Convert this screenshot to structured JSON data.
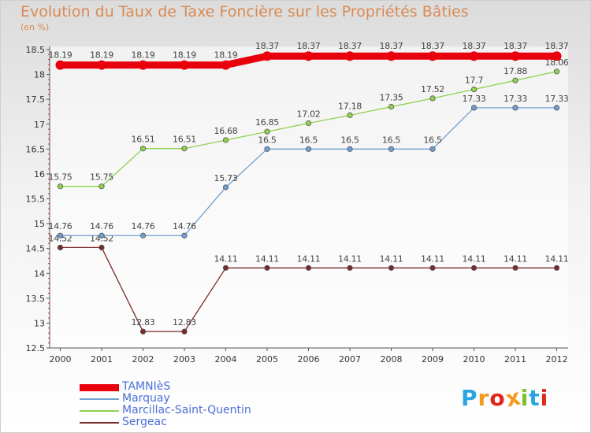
{
  "title": "Evolution du Taux de Taxe Foncière sur les Propriétés Bâties",
  "unit": "(en %)",
  "logo": {
    "text": "Proxiti",
    "letter_colors": [
      "#2aa6df",
      "#f39a1f",
      "#e0261b",
      "#f39a1f",
      "#7bbf2a",
      "#2aa6df",
      "#e0261b"
    ]
  },
  "chart_data": {
    "type": "line",
    "title": "Evolution du Taux de Taxe Foncière sur les Propriétés Bâties",
    "ylabel": "(en %)",
    "xlabel": "",
    "x": [
      "2000",
      "2001",
      "2002",
      "2003",
      "2004",
      "2005",
      "2006",
      "2007",
      "2008",
      "2009",
      "2010",
      "2011",
      "2012"
    ],
    "ylim": [
      12.5,
      18.5
    ],
    "yticks": [
      "12.5",
      "13",
      "13.5",
      "14",
      "14.5",
      "15",
      "15.5",
      "16",
      "16.5",
      "17",
      "17.5",
      "18",
      "18.5"
    ],
    "grid": false,
    "legend_position": "bottom-left",
    "series": [
      {
        "name": "TAMNIèS",
        "color": "#e8000c",
        "values": [
          18.19,
          18.19,
          18.19,
          18.19,
          18.19,
          18.37,
          18.37,
          18.37,
          18.37,
          18.37,
          18.37,
          18.37,
          18.37
        ],
        "labels": [
          "18.19",
          "18.19",
          "18.19",
          "18.19",
          "18.19",
          "18.37",
          "18.37",
          "18.37",
          "18.37",
          "18.37",
          "18.37",
          "18.37",
          "18.37"
        ]
      },
      {
        "name": "Marquay",
        "color": "#6f9fd0",
        "values": [
          14.76,
          14.76,
          14.76,
          14.76,
          15.73,
          16.5,
          16.5,
          16.5,
          16.5,
          16.5,
          17.33,
          17.33,
          17.33
        ],
        "labels": [
          "14.76",
          "14.76",
          "14.76",
          "14.76",
          "15.73",
          "16.5",
          "16.5",
          "16.5",
          "16.5",
          "16.5",
          "17.33",
          "17.33",
          "17.33"
        ]
      },
      {
        "name": "Marcillac-Saint-Quentin",
        "color": "#8fd14f",
        "values": [
          15.75,
          15.75,
          16.51,
          16.51,
          16.68,
          16.85,
          17.02,
          17.18,
          17.35,
          17.52,
          17.7,
          17.88,
          18.06
        ],
        "labels": [
          "15.75",
          "15.75",
          "16.51",
          "16.51",
          "16.68",
          "16.85",
          "17.02",
          "17.18",
          "17.35",
          "17.52",
          "17.7",
          "17.88",
          "18.06"
        ]
      },
      {
        "name": "Sergeac",
        "color": "#7a2a2a",
        "values": [
          14.52,
          14.52,
          12.83,
          12.83,
          14.11,
          14.11,
          14.11,
          14.11,
          14.11,
          14.11,
          14.11,
          14.11,
          14.11
        ],
        "labels": [
          "14.52",
          "14.52",
          "12.83",
          "12.83",
          "14.11",
          "14.11",
          "14.11",
          "14.11",
          "14.11",
          "14.11",
          "14.11",
          "14.11",
          "14.11"
        ]
      }
    ]
  }
}
